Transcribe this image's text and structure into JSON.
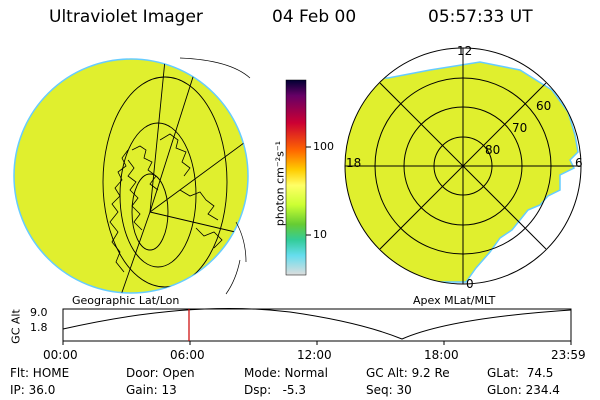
{
  "header": {
    "instrument": "Ultraviolet Imager",
    "date": "04 Feb 00",
    "time": "05:57:33 UT"
  },
  "colorbar": {
    "label": "photon cm⁻²s⁻¹",
    "ticks": [
      "100",
      "10"
    ],
    "scale": "log",
    "stops": [
      "#000033",
      "#660066",
      "#cc0033",
      "#ff6600",
      "#ffcc00",
      "#ffff66",
      "#ccff33",
      "#66cc33",
      "#33cc99",
      "#66ddee",
      "#dddddd"
    ]
  },
  "left_panel": {
    "caption": "Geographic Lat/Lon",
    "fill_color": "#e0ef2e"
  },
  "right_panel": {
    "caption": "Apex MLat/MLT",
    "mlt_labels": {
      "top": "12",
      "left": "18",
      "right": "6",
      "bottom": "0"
    },
    "lat_labels": [
      "60",
      "70",
      "80"
    ],
    "fill_color": "#e0ef2e"
  },
  "timeline": {
    "axis_title": "GC Alt",
    "y_max": "9.0",
    "y_min": "1.8",
    "x_ticks": [
      "00:00",
      "06:00",
      "12:00",
      "18:00",
      "23:59"
    ],
    "marker_time": "05:57",
    "marker_color": "#cc0000"
  },
  "footer": {
    "flt": "Flt: HOME",
    "ip": "IP: 36.0",
    "door": "Door: Open",
    "gain": "Gain: 13",
    "mode": "Mode: Normal",
    "dsp": "Dsp:   -5.3",
    "gc_alt": "GC Alt: 9.2 Re",
    "seq": "Seq: 30",
    "glat": "GLat:  74.5",
    "glon": "GLon: 234.4"
  }
}
